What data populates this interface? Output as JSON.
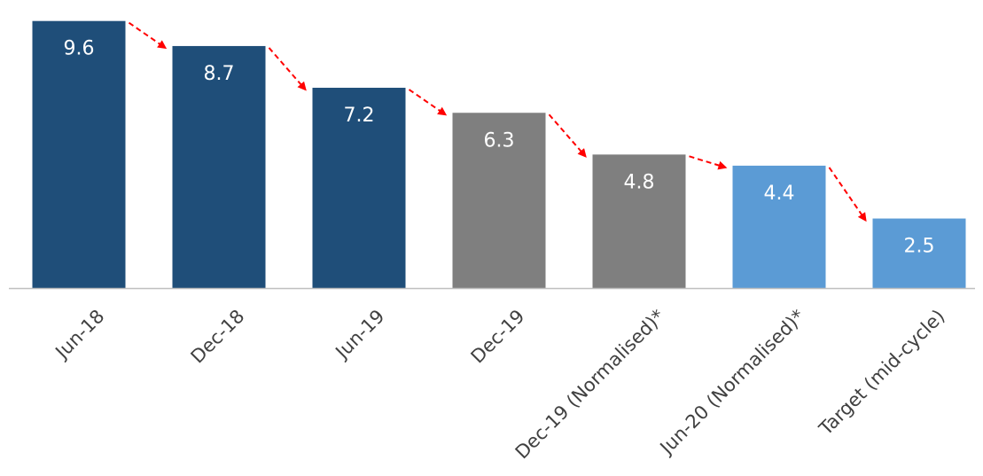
{
  "chart_data": {
    "type": "bar",
    "title": "",
    "xlabel": "",
    "ylabel": "",
    "ylim": [
      0,
      10.1
    ],
    "grid": false,
    "legend": "none",
    "categories": [
      "Jun-18",
      "Dec-18",
      "Jun-19",
      "Dec-19",
      "Dec-19 (Normalised)*",
      "Jun-20 (Normalised)*",
      "Target (mid-cycle)"
    ],
    "values": [
      9.6,
      8.7,
      7.2,
      6.3,
      4.8,
      4.4,
      2.5
    ],
    "data_labels": [
      "9.6",
      "8.7",
      "7.2",
      "6.3",
      "4.8",
      "4.4",
      "2.5"
    ],
    "bar_colors": [
      "#1f4e79",
      "#1f4e79",
      "#1f4e79",
      "#7f7f7f",
      "#7f7f7f",
      "#5b9bd5",
      "#5b9bd5"
    ],
    "arrow_color": "#ff0000",
    "axis_color": "#bfbfbf"
  }
}
